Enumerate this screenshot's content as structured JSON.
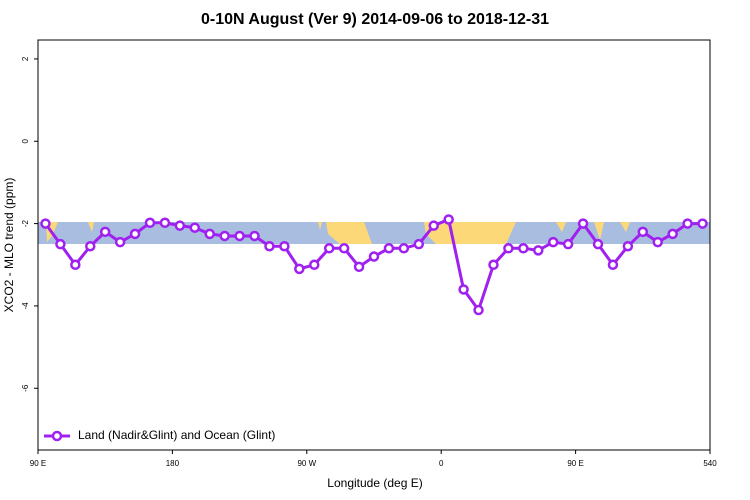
{
  "chart_data": {
    "type": "line",
    "title": "0-10N August (Ver 9)   2014-09-06 to 2018-12-31",
    "x_label": "Longitude (deg E)",
    "y_label": "XCO2 - MLO trend (ppm)",
    "xlim": [
      90,
      540
    ],
    "xticks": [
      {
        "value": 90,
        "label": "90 E"
      },
      180,
      {
        "value": 270,
        "label": "90 W"
      },
      {
        "value": 360,
        "label": "0"
      },
      {
        "value": 450,
        "label": "90 E"
      },
      540
    ],
    "ylim": [
      -7.5,
      2.46
    ],
    "yticks": [
      2,
      0,
      -2,
      -4,
      -6
    ],
    "legend": "bottom-left",
    "x": [
      95,
      105,
      115,
      125,
      135,
      145,
      155,
      165,
      175,
      185,
      195,
      205,
      215,
      225,
      235,
      245,
      255,
      265,
      275,
      285,
      295,
      305,
      315,
      325,
      335,
      345,
      355,
      365,
      375,
      385,
      395,
      405,
      415,
      425,
      435,
      445,
      455,
      465,
      475,
      485,
      495,
      505,
      515,
      525,
      535
    ],
    "series": [
      {
        "name": "Land (Nadir&Glint) and Ocean (Glint)",
        "color": "#a020f0",
        "values": [
          -2.0,
          -2.5,
          -3.0,
          -2.55,
          -2.2,
          -2.45,
          -2.25,
          -1.98,
          -1.98,
          -2.05,
          -2.1,
          -2.25,
          -2.3,
          -2.3,
          -2.3,
          -2.55,
          -2.55,
          -3.1,
          -3.0,
          -2.6,
          -2.6,
          -3.05,
          -2.8,
          -2.6,
          -2.6,
          -2.5,
          -2.05,
          -1.9,
          -3.6,
          -4.1,
          -3.0,
          -2.6,
          -2.6,
          -2.65,
          -2.45,
          -2.5,
          -2.0,
          -2.5,
          -3.0,
          -2.55,
          -2.2,
          -2.45,
          -2.25,
          -2.0,
          -2.0
        ]
      }
    ]
  }
}
